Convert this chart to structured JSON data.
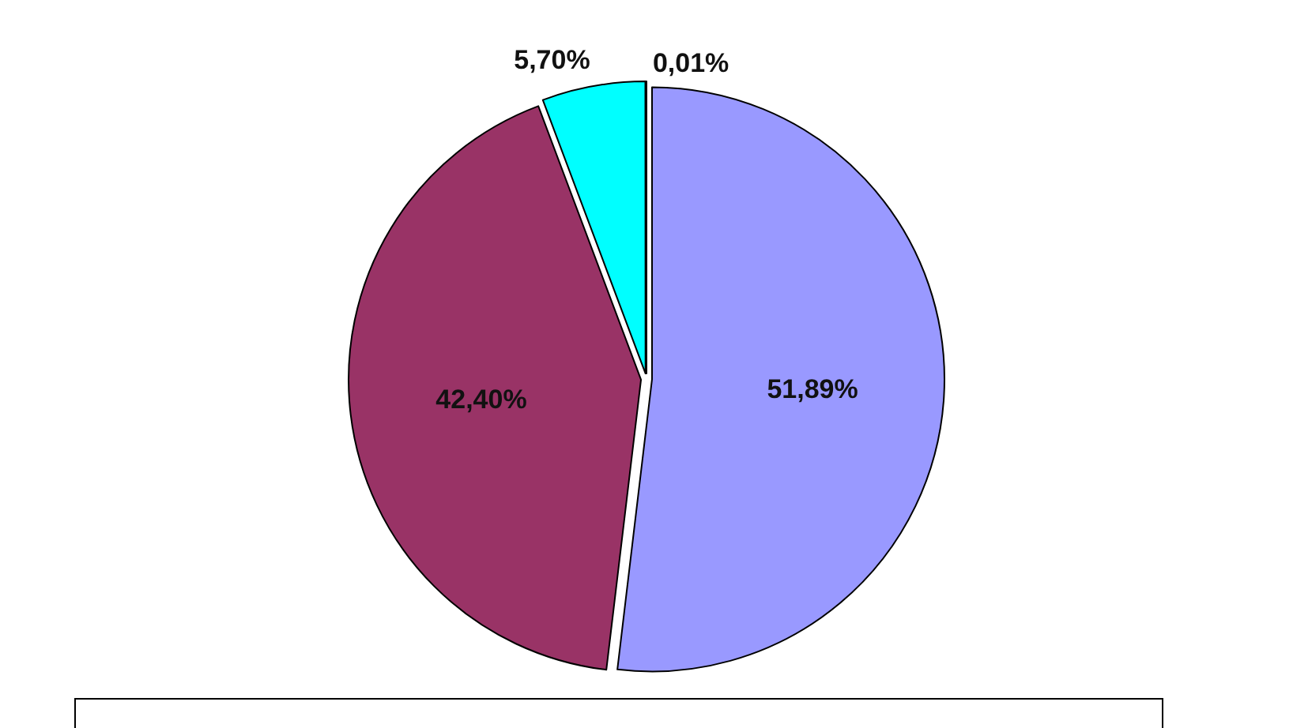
{
  "chart_data": {
    "type": "pie",
    "categories": [
      null,
      null,
      null,
      null
    ],
    "values": [
      51.89,
      42.4,
      5.7,
      0.01
    ],
    "colors": [
      "#9999ff",
      "#993366",
      "#00ffff",
      "#ffffcc"
    ],
    "value_labels": [
      "51,89%",
      "42,40%",
      "5,70%",
      "0,01%"
    ]
  }
}
